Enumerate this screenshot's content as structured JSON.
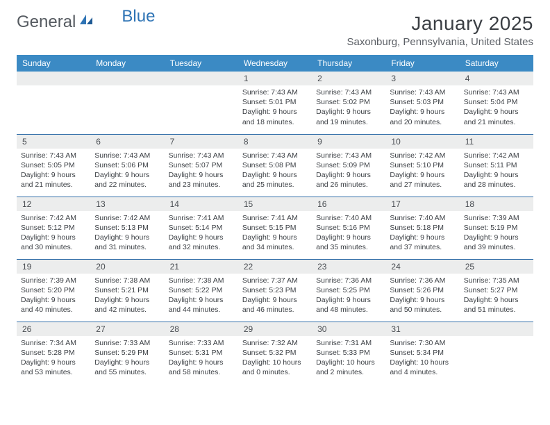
{
  "logo": {
    "text_gray": "General",
    "text_blue": "Blue"
  },
  "title": "January 2025",
  "location": "Saxonburg, Pennsylvania, United States",
  "colors": {
    "header_bg": "#3b8ac4",
    "row_divider": "#2f6da8",
    "daynum_bg": "#eceded",
    "text_dark": "#3b3f44",
    "logo_gray": "#555a60",
    "logo_blue": "#2f74b5"
  },
  "day_headers": [
    "Sunday",
    "Monday",
    "Tuesday",
    "Wednesday",
    "Thursday",
    "Friday",
    "Saturday"
  ],
  "weeks": [
    [
      null,
      null,
      null,
      {
        "n": "1",
        "sr": "7:43 AM",
        "ss": "5:01 PM",
        "dl": "9 hours and 18 minutes."
      },
      {
        "n": "2",
        "sr": "7:43 AM",
        "ss": "5:02 PM",
        "dl": "9 hours and 19 minutes."
      },
      {
        "n": "3",
        "sr": "7:43 AM",
        "ss": "5:03 PM",
        "dl": "9 hours and 20 minutes."
      },
      {
        "n": "4",
        "sr": "7:43 AM",
        "ss": "5:04 PM",
        "dl": "9 hours and 21 minutes."
      }
    ],
    [
      {
        "n": "5",
        "sr": "7:43 AM",
        "ss": "5:05 PM",
        "dl": "9 hours and 21 minutes."
      },
      {
        "n": "6",
        "sr": "7:43 AM",
        "ss": "5:06 PM",
        "dl": "9 hours and 22 minutes."
      },
      {
        "n": "7",
        "sr": "7:43 AM",
        "ss": "5:07 PM",
        "dl": "9 hours and 23 minutes."
      },
      {
        "n": "8",
        "sr": "7:43 AM",
        "ss": "5:08 PM",
        "dl": "9 hours and 25 minutes."
      },
      {
        "n": "9",
        "sr": "7:43 AM",
        "ss": "5:09 PM",
        "dl": "9 hours and 26 minutes."
      },
      {
        "n": "10",
        "sr": "7:42 AM",
        "ss": "5:10 PM",
        "dl": "9 hours and 27 minutes."
      },
      {
        "n": "11",
        "sr": "7:42 AM",
        "ss": "5:11 PM",
        "dl": "9 hours and 28 minutes."
      }
    ],
    [
      {
        "n": "12",
        "sr": "7:42 AM",
        "ss": "5:12 PM",
        "dl": "9 hours and 30 minutes."
      },
      {
        "n": "13",
        "sr": "7:42 AM",
        "ss": "5:13 PM",
        "dl": "9 hours and 31 minutes."
      },
      {
        "n": "14",
        "sr": "7:41 AM",
        "ss": "5:14 PM",
        "dl": "9 hours and 32 minutes."
      },
      {
        "n": "15",
        "sr": "7:41 AM",
        "ss": "5:15 PM",
        "dl": "9 hours and 34 minutes."
      },
      {
        "n": "16",
        "sr": "7:40 AM",
        "ss": "5:16 PM",
        "dl": "9 hours and 35 minutes."
      },
      {
        "n": "17",
        "sr": "7:40 AM",
        "ss": "5:18 PM",
        "dl": "9 hours and 37 minutes."
      },
      {
        "n": "18",
        "sr": "7:39 AM",
        "ss": "5:19 PM",
        "dl": "9 hours and 39 minutes."
      }
    ],
    [
      {
        "n": "19",
        "sr": "7:39 AM",
        "ss": "5:20 PM",
        "dl": "9 hours and 40 minutes."
      },
      {
        "n": "20",
        "sr": "7:38 AM",
        "ss": "5:21 PM",
        "dl": "9 hours and 42 minutes."
      },
      {
        "n": "21",
        "sr": "7:38 AM",
        "ss": "5:22 PM",
        "dl": "9 hours and 44 minutes."
      },
      {
        "n": "22",
        "sr": "7:37 AM",
        "ss": "5:23 PM",
        "dl": "9 hours and 46 minutes."
      },
      {
        "n": "23",
        "sr": "7:36 AM",
        "ss": "5:25 PM",
        "dl": "9 hours and 48 minutes."
      },
      {
        "n": "24",
        "sr": "7:36 AM",
        "ss": "5:26 PM",
        "dl": "9 hours and 50 minutes."
      },
      {
        "n": "25",
        "sr": "7:35 AM",
        "ss": "5:27 PM",
        "dl": "9 hours and 51 minutes."
      }
    ],
    [
      {
        "n": "26",
        "sr": "7:34 AM",
        "ss": "5:28 PM",
        "dl": "9 hours and 53 minutes."
      },
      {
        "n": "27",
        "sr": "7:33 AM",
        "ss": "5:29 PM",
        "dl": "9 hours and 55 minutes."
      },
      {
        "n": "28",
        "sr": "7:33 AM",
        "ss": "5:31 PM",
        "dl": "9 hours and 58 minutes."
      },
      {
        "n": "29",
        "sr": "7:32 AM",
        "ss": "5:32 PM",
        "dl": "10 hours and 0 minutes."
      },
      {
        "n": "30",
        "sr": "7:31 AM",
        "ss": "5:33 PM",
        "dl": "10 hours and 2 minutes."
      },
      {
        "n": "31",
        "sr": "7:30 AM",
        "ss": "5:34 PM",
        "dl": "10 hours and 4 minutes."
      },
      null
    ]
  ],
  "labels": {
    "sunrise": "Sunrise:",
    "sunset": "Sunset:",
    "daylight": "Daylight:"
  }
}
